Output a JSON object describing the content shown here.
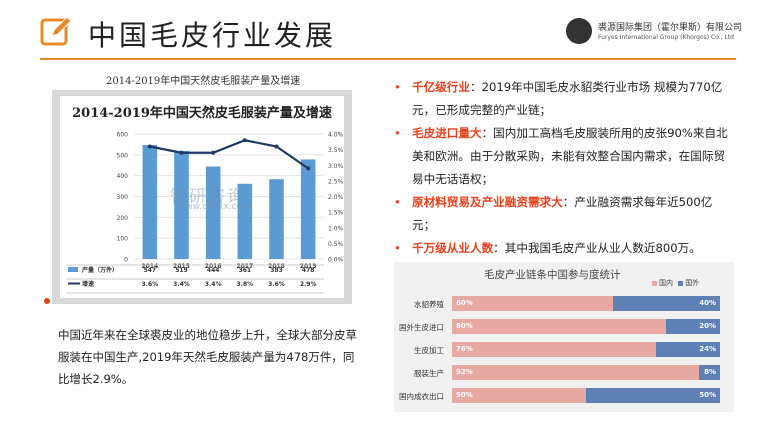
{
  "header": {
    "title": "中国毛皮行业发展",
    "logo_cn": "裘源国际集团（霍尔果斯）有限公司",
    "logo_en": "Furyes International Group (Khorgos) Co., Ltd"
  },
  "left": {
    "chart_caption": "2014-2019年中国天然皮毛服装产量及增速",
    "watermark": "智研咨询",
    "watermark_url": "www.chyxx.com",
    "paragraph": "中国近年来在全球裘皮业的地位稳步上升，全球大部分皮草服装在中国生产,2019年天然毛皮服装产量为478万件，同比增长2.9%。"
  },
  "bullets": [
    {
      "key": "千亿级行业",
      "text": "：2019年中国毛皮水貂类行业市场 规模为770亿元，已形成完整的产业链；"
    },
    {
      "key": "毛皮进口量大",
      "text": "：国内加工高档毛皮服装所用的皮张90%来自北美和欧洲。由于分散采购，未能有效整合国内需求，在国际贸易中无话语权；"
    },
    {
      "key": "原材料贸易及产业融资需求大",
      "text": "：产业融资需求每年近500亿元；"
    },
    {
      "key": "千万级从业人数",
      "text": "：其中我国毛皮产业从业人数近800万。"
    }
  ],
  "colors": {
    "accent": "#e8421d",
    "orange": "#e8892a",
    "bar_blue": "#5b9bd5",
    "line_navy": "#1f3864",
    "domestic": "#e8a9a3",
    "foreign": "#5e80b5"
  },
  "chart_data": [
    {
      "type": "bar",
      "title": "2014-2019年中国天然皮毛服装产量及增速",
      "categories": [
        "2014",
        "2015",
        "2016",
        "2017",
        "2018",
        "2019"
      ],
      "series": [
        {
          "name": "产量（万件）",
          "type": "bar",
          "axis": "left",
          "values": [
            547,
            519,
            444,
            361,
            383,
            478
          ]
        },
        {
          "name": "增速",
          "type": "line",
          "axis": "right",
          "values": [
            3.6,
            3.4,
            3.4,
            3.8,
            3.6,
            2.9
          ]
        }
      ],
      "table_rows": [
        {
          "label": "产量（万件）",
          "cells": [
            "547",
            "519",
            "444",
            "361",
            "383",
            "478"
          ]
        },
        {
          "label": "增速",
          "cells": [
            "3.6%",
            "3.4%",
            "3.4%",
            "3.8%",
            "3.6%",
            "2.9%"
          ]
        }
      ],
      "ylim_left": [
        0,
        600
      ],
      "ylim_right": [
        0,
        4.0
      ],
      "yticks_left": [
        "0",
        "100",
        "200",
        "300",
        "400",
        "500",
        "600"
      ],
      "yticks_right": [
        "0.0%",
        "0.5%",
        "1.0%",
        "1.5%",
        "2.0%",
        "2.5%",
        "3.0%",
        "3.5%",
        "4.0%"
      ],
      "grid": true
    },
    {
      "type": "bar",
      "stacked": true,
      "orientation": "horizontal",
      "title": "毛皮产业链条中国参与度统计",
      "categories": [
        "水貂养殖",
        "国外生皮进口",
        "生皮加工",
        "服装生产",
        "国内成衣出口"
      ],
      "series": [
        {
          "name": "国内",
          "values": [
            60,
            80,
            76,
            92,
            50
          ],
          "labels": [
            "60%",
            "80%",
            "76%",
            "92%",
            "50%"
          ]
        },
        {
          "name": "国外",
          "values": [
            40,
            20,
            24,
            8,
            50
          ],
          "labels": [
            "40%",
            "20%",
            "24%",
            "8%",
            "50%"
          ]
        }
      ],
      "legend_position": "top-right"
    }
  ]
}
